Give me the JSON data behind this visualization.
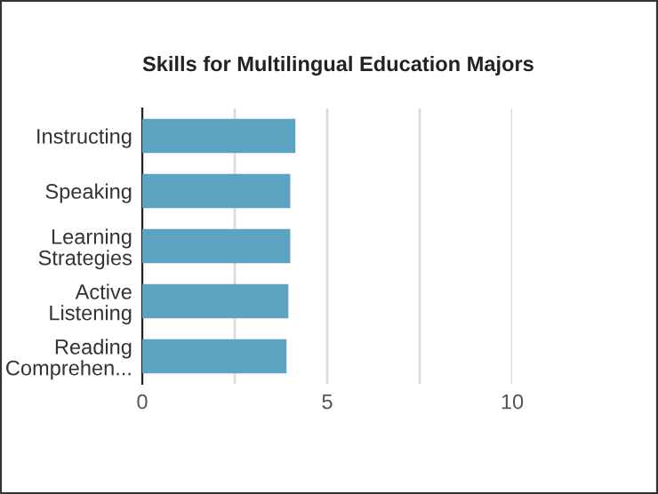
{
  "chart_data": {
    "type": "bar",
    "orientation": "horizontal",
    "title": "Skills for Multilingual Education Majors",
    "categories": [
      "Instructing",
      "Speaking",
      "Learning\nStrategies",
      "Active\nListening",
      "Reading\nComprehen..."
    ],
    "values": [
      4.14,
      4.0,
      4.0,
      3.95,
      3.9
    ],
    "color": "#5ba3c0",
    "xlim": [
      0,
      10
    ],
    "xticks": [
      0,
      {
        "value": 2.5,
        "label": null
      },
      5,
      {
        "value": 7.5,
        "label": null
      },
      10
    ],
    "grid": "x"
  }
}
